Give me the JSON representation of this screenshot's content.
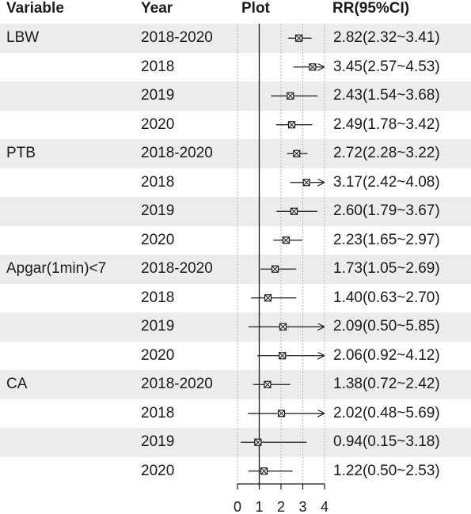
{
  "headers": {
    "variable": "Variable",
    "year": "Year",
    "plot": "Plot",
    "rr": "RR(95%CI)"
  },
  "colors": {
    "band": "#ececec",
    "ink": "#1a1a1a",
    "grid": "#b5b5b5"
  },
  "chart_data": {
    "type": "forest",
    "title": "",
    "xlabel": "",
    "ylabel": "",
    "xlim": [
      0,
      4
    ],
    "xticks": [
      "0",
      "1",
      "2",
      "3",
      "4"
    ],
    "reference_line": 1,
    "grid": true,
    "rows": [
      {
        "variable": "LBW",
        "year": "2018-2020",
        "rr": 2.82,
        "lower": 2.32,
        "upper": 3.41,
        "label": "2.82(2.32~3.41)",
        "shaded": true
      },
      {
        "variable": "",
        "year": "2018",
        "rr": 3.45,
        "lower": 2.57,
        "upper": 4.53,
        "label": "3.45(2.57~4.53)",
        "shaded": false
      },
      {
        "variable": "",
        "year": "2019",
        "rr": 2.43,
        "lower": 1.54,
        "upper": 3.68,
        "label": "2.43(1.54~3.68)",
        "shaded": true
      },
      {
        "variable": "",
        "year": "2020",
        "rr": 2.49,
        "lower": 1.78,
        "upper": 3.42,
        "label": "2.49(1.78~3.42)",
        "shaded": false
      },
      {
        "variable": "PTB",
        "year": "2018-2020",
        "rr": 2.72,
        "lower": 2.28,
        "upper": 3.22,
        "label": "2.72(2.28~3.22)",
        "shaded": true
      },
      {
        "variable": "",
        "year": "2018",
        "rr": 3.17,
        "lower": 2.42,
        "upper": 4.08,
        "label": "3.17(2.42~4.08)",
        "shaded": false
      },
      {
        "variable": "",
        "year": "2019",
        "rr": 2.6,
        "lower": 1.79,
        "upper": 3.67,
        "label": "2.60(1.79~3.67)",
        "shaded": true
      },
      {
        "variable": "",
        "year": "2020",
        "rr": 2.23,
        "lower": 1.65,
        "upper": 2.97,
        "label": "2.23(1.65~2.97)",
        "shaded": false
      },
      {
        "variable": "Apgar(1min)<7",
        "year": "2018-2020",
        "rr": 1.73,
        "lower": 1.05,
        "upper": 2.69,
        "label": "1.73(1.05~2.69)",
        "shaded": true
      },
      {
        "variable": "",
        "year": "2018",
        "rr": 1.4,
        "lower": 0.63,
        "upper": 2.7,
        "label": "1.40(0.63~2.70)",
        "shaded": false
      },
      {
        "variable": "",
        "year": "2019",
        "rr": 2.09,
        "lower": 0.5,
        "upper": 5.85,
        "label": "2.09(0.50~5.85)",
        "shaded": true
      },
      {
        "variable": "",
        "year": "2020",
        "rr": 2.06,
        "lower": 0.92,
        "upper": 4.12,
        "label": "2.06(0.92~4.12)",
        "shaded": false
      },
      {
        "variable": "CA",
        "year": "2018-2020",
        "rr": 1.38,
        "lower": 0.72,
        "upper": 2.42,
        "label": "1.38(0.72~2.42)",
        "shaded": true
      },
      {
        "variable": "",
        "year": "2018",
        "rr": 2.02,
        "lower": 0.48,
        "upper": 5.69,
        "label": "2.02(0.48~5.69)",
        "shaded": false
      },
      {
        "variable": "",
        "year": "2019",
        "rr": 0.94,
        "lower": 0.15,
        "upper": 3.18,
        "label": "0.94(0.15~3.18)",
        "shaded": true
      },
      {
        "variable": "",
        "year": "2020",
        "rr": 1.22,
        "lower": 0.5,
        "upper": 2.53,
        "label": "1.22(0.50~2.53)",
        "shaded": false
      }
    ]
  }
}
